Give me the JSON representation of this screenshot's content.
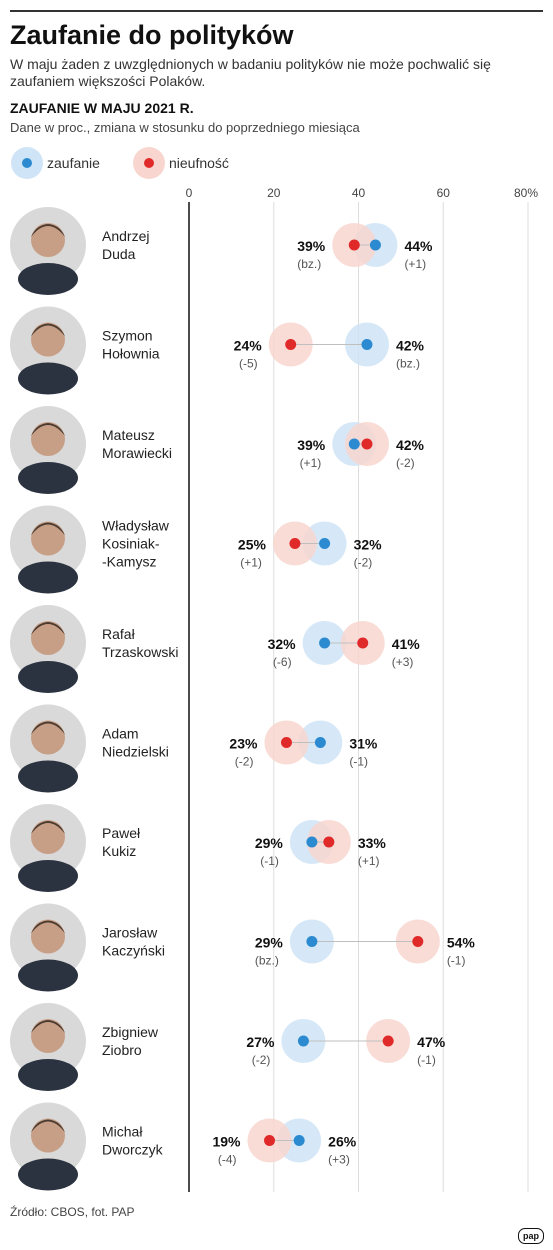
{
  "title": "Zaufanie do polityków",
  "subtitle": "W maju żaden z uwzględnionych w badaniu polityków nie może pochwalić się zaufaniem większości Polaków.",
  "section_title": "ZAUFANIE W MAJU 2021 R.",
  "note": "Dane w proc., zmiana w stosunku do poprzedniego miesiąca",
  "source": "Źródło: CBOS, fot. PAP",
  "logo": "pap",
  "colors": {
    "trust": "#2b8ad0",
    "trust_halo": "#cfe4f6",
    "distrust": "#e02a2a",
    "distrust_halo": "#f8d6cf"
  },
  "chart_data": {
    "type": "dot",
    "xlim": [
      0,
      80
    ],
    "ticks": [
      "0",
      "20",
      "40",
      "60",
      "80%"
    ],
    "tick_values": [
      0,
      20,
      40,
      60,
      80
    ],
    "legend": [
      {
        "key": "trust",
        "label": "zaufanie"
      },
      {
        "key": "distrust",
        "label": "nieufność"
      }
    ],
    "people": [
      {
        "name1": "Andrzej",
        "name2": "Duda",
        "trust": 44,
        "trust_label": "44%",
        "trust_change": "(+1)",
        "distrust": 39,
        "distrust_label": "39%",
        "distrust_change": "(bz.)"
      },
      {
        "name1": "Szymon",
        "name2": "Hołownia",
        "trust": 42,
        "trust_label": "42%",
        "trust_change": "(bz.)",
        "distrust": 24,
        "distrust_label": "24%",
        "distrust_change": "(-5)"
      },
      {
        "name1": "Mateusz",
        "name2": "Morawiecki",
        "trust": 39,
        "trust_label": "39%",
        "trust_change": "(+1)",
        "distrust": 42,
        "distrust_label": "42%",
        "distrust_change": "(-2)"
      },
      {
        "name1": "Władysław",
        "name2": "Kosiniak-",
        "name3": "-Kamysz",
        "trust": 32,
        "trust_label": "32%",
        "trust_change": "(-2)",
        "distrust": 25,
        "distrust_label": "25%",
        "distrust_change": "(+1)"
      },
      {
        "name1": "Rafał",
        "name2": "Trzaskowski",
        "trust": 32,
        "trust_label": "32%",
        "trust_change": "(-6)",
        "distrust": 41,
        "distrust_label": "41%",
        "distrust_change": "(+3)"
      },
      {
        "name1": "Adam",
        "name2": "Niedzielski",
        "trust": 31,
        "trust_label": "31%",
        "trust_change": "(-1)",
        "distrust": 23,
        "distrust_label": "23%",
        "distrust_change": "(-2)"
      },
      {
        "name1": "Paweł",
        "name2": "Kukiz",
        "trust": 29,
        "trust_label": "29%",
        "trust_change": "(-1)",
        "distrust": 33,
        "distrust_label": "33%",
        "distrust_change": "(+1)"
      },
      {
        "name1": "Jarosław",
        "name2": "Kaczyński",
        "trust": 29,
        "trust_label": "29%",
        "trust_change": "(bz.)",
        "distrust": 54,
        "distrust_label": "54%",
        "distrust_change": "(-1)"
      },
      {
        "name1": "Zbigniew",
        "name2": "Ziobro",
        "trust": 27,
        "trust_label": "27%",
        "trust_change": "(-2)",
        "distrust": 47,
        "distrust_label": "47%",
        "distrust_change": "(-1)"
      },
      {
        "name1": "Michał",
        "name2": "Dworczyk",
        "trust": 26,
        "trust_label": "26%",
        "trust_change": "(+3)",
        "distrust": 19,
        "distrust_label": "19%",
        "distrust_change": "(-4)"
      }
    ]
  }
}
